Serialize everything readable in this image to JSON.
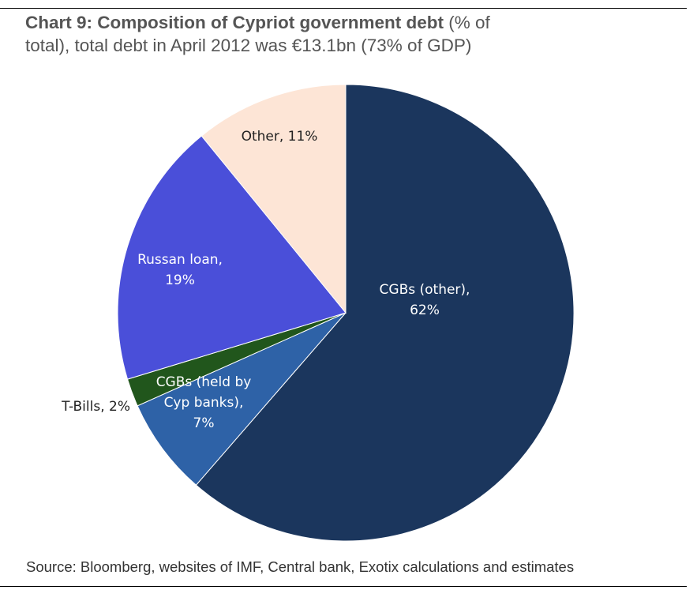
{
  "header": {
    "title_bold": "Chart 9: Composition of Cypriot government debt",
    "title_rest_line1": "(% of",
    "title_line2": "total), total debt in April 2012 was €13.1bn (73% of GDP)"
  },
  "footer": {
    "source": "Source: Bloomberg, websites of IMF, Central bank, Exotix calculations and estimates"
  },
  "chart_data": {
    "type": "pie",
    "start_angle_deg": 0,
    "direction": "clockwise",
    "slices": [
      {
        "name": "CGBs (other)",
        "value": 62,
        "color": "#1b365d",
        "label_lines": [
          "CGBs (other),",
          "62%"
        ],
        "label_color": "#ffffff"
      },
      {
        "name": "CGBs (held by Cyp banks)",
        "value": 7,
        "color": "#2e62a7",
        "label_lines": [
          "CGBs (held by",
          "Cyp banks),",
          "7%"
        ],
        "label_color": "#ffffff"
      },
      {
        "name": "T-Bills",
        "value": 2,
        "color": "#21561c",
        "label_lines": [
          "T-Bills, 2%"
        ],
        "label_color": "#222222"
      },
      {
        "name": "Russan loan",
        "value": 19,
        "color": "#4a4fd9",
        "label_lines": [
          "Russan loan,",
          "19%"
        ],
        "label_color": "#ffffff"
      },
      {
        "name": "Other",
        "value": 11,
        "color": "#fde5d6",
        "label_lines": [
          "Other, 11%"
        ],
        "label_color": "#222222"
      }
    ]
  }
}
